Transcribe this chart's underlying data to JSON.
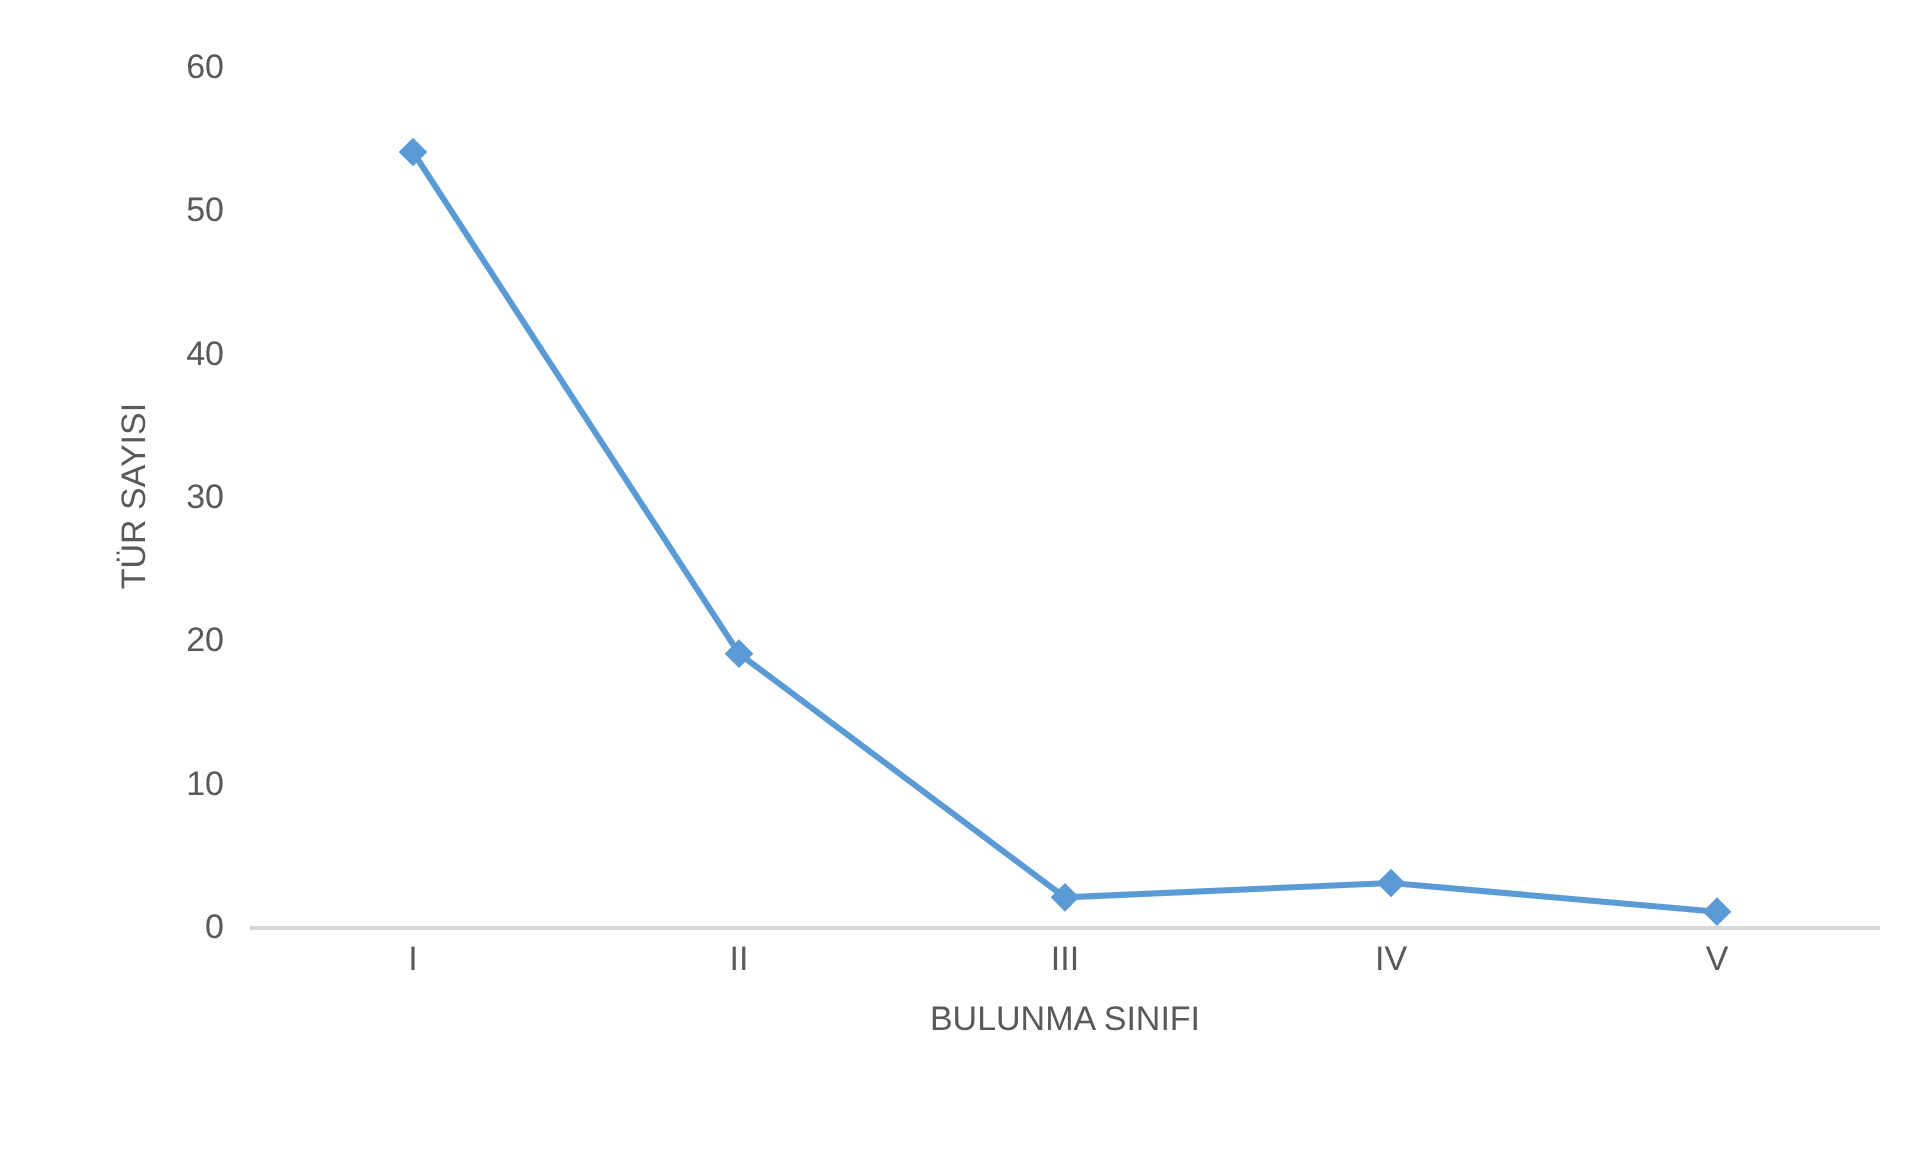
{
  "chart_data": {
    "type": "line",
    "xlabel": "BULUNMA SINIFI",
    "ylabel": "TÜR SAYISI",
    "categories": [
      "I",
      "II",
      "III",
      "IV",
      "V"
    ],
    "series": [
      {
        "color": "#5b9bd5",
        "values": [
          54,
          19,
          2,
          3,
          1
        ]
      }
    ],
    "ylim": [
      0,
      60
    ],
    "yticks": [
      0,
      10,
      20,
      30,
      40,
      50,
      60
    ],
    "grid": false,
    "marker": "diamond",
    "line_style": "solid"
  }
}
